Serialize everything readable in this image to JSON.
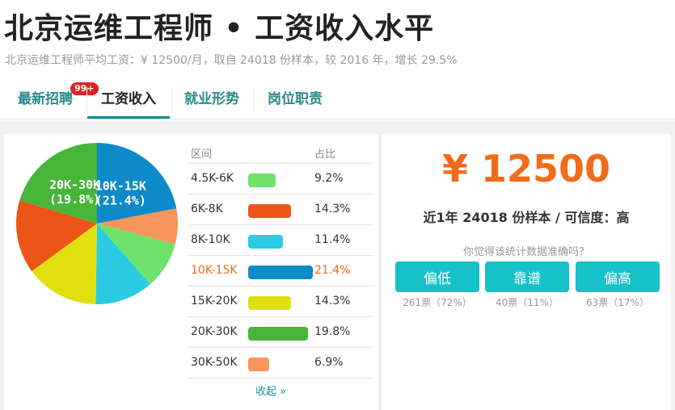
{
  "header": {
    "title": "北京运维工程师 • 工资收入水平",
    "subtitle": "北京运维工程师平均工资：¥ 12500/月，取自 24018 份样本，较 2016 年，增长 29.5%"
  },
  "tabs": [
    {
      "label": "最新招聘",
      "badge": "99+",
      "active": false
    },
    {
      "label": "工资收入",
      "active": true
    },
    {
      "label": "就业形势",
      "active": false
    },
    {
      "label": "岗位职责",
      "active": false
    }
  ],
  "distribution": {
    "header_range": "区间",
    "header_pct": "占比",
    "collapse_label": "收起 »",
    "rows": [
      {
        "range": "4.5K-6K",
        "pct": "9.2%",
        "share": 9.2,
        "color": "#6ee26b",
        "highlight": false
      },
      {
        "range": "6K-8K",
        "pct": "14.3%",
        "share": 14.3,
        "color": "#ec5418",
        "highlight": false
      },
      {
        "range": "8K-10K",
        "pct": "11.4%",
        "share": 11.4,
        "color": "#2bcbe2",
        "highlight": false
      },
      {
        "range": "10K-15K",
        "pct": "21.4%",
        "share": 21.4,
        "color": "#0e8ac8",
        "highlight": true
      },
      {
        "range": "15K-20K",
        "pct": "14.3%",
        "share": 14.3,
        "color": "#e0e010",
        "highlight": false
      },
      {
        "range": "20K-30K",
        "pct": "19.8%",
        "share": 19.8,
        "color": "#47b53a",
        "highlight": false
      },
      {
        "range": "30K-50K",
        "pct": "6.9%",
        "share": 6.9,
        "color": "#f7955a",
        "highlight": false
      }
    ]
  },
  "pie_chart": {
    "slice_order": [
      "10K-15K",
      "30K-50K",
      "4.5K-6K",
      "8K-10K",
      "15K-20K",
      "6K-8K",
      "20K-30K"
    ],
    "labels": [
      {
        "range": "10K-15K",
        "line1": "10K-15K",
        "line2": "(21.4%)"
      },
      {
        "range": "20K-30K",
        "line1": "20K-30K",
        "line2": "(19.8%)"
      }
    ]
  },
  "summary": {
    "salary": "¥ 12500",
    "sample_line": "近1年 24018 份样本 / 可信度：高",
    "vote_question": "你觉得该统计数据准确吗？",
    "votes": [
      {
        "label": "偏低",
        "count": "261票（72%）"
      },
      {
        "label": "靠谱",
        "count": "40票（11%）"
      },
      {
        "label": "偏高",
        "count": "63票（17%）"
      }
    ]
  }
}
